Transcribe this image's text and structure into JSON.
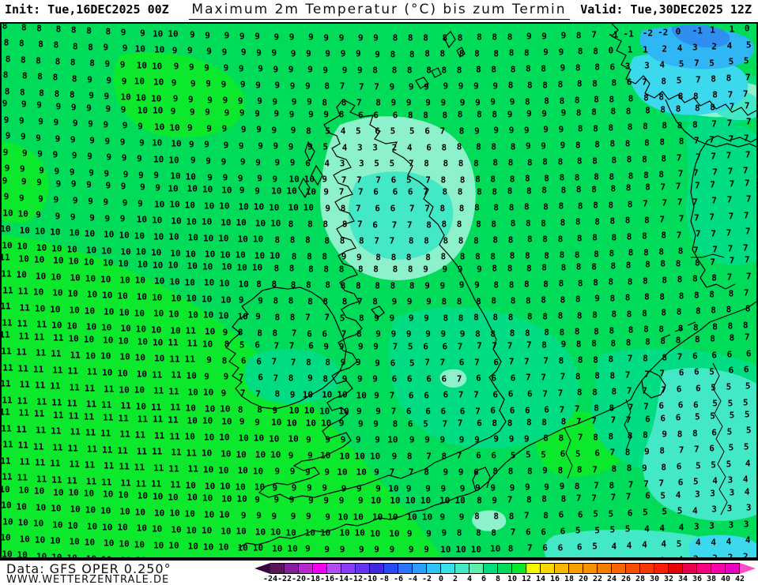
{
  "header": {
    "init_label": "Init: Tue,16DEC2025 00Z",
    "title": "Maximum 2m Temperatur (°C) bis zum Termin",
    "valid_label": "Valid: Tue,30DEC2025 12Z"
  },
  "footer": {
    "data_source": "Data: GFS OPER 0.250°",
    "website": "WWW.WETTERZENTRALE.DE"
  },
  "colorbar": {
    "labels": [
      "-24",
      "-22",
      "-20",
      "-18",
      "-16",
      "-14",
      "-12",
      "-10",
      "-8",
      "-6",
      "-4",
      "-2",
      "0",
      "2",
      "4",
      "6",
      "8",
      "10",
      "12",
      "14",
      "16",
      "18",
      "20",
      "22",
      "24",
      "26",
      "28",
      "30",
      "32",
      "34",
      "36",
      "38",
      "40",
      "42"
    ],
    "arrow_left_color": "#38083c",
    "arrow_right_color": "#ff50c8",
    "cell_colors": [
      "#581458",
      "#86209a",
      "#b428cc",
      "#f000f0",
      "#b44cf4",
      "#8c3cf8",
      "#6434f0",
      "#4028e0",
      "#2848f4",
      "#2874fc",
      "#28a0fc",
      "#30c4f8",
      "#38e0e8",
      "#44e8c4",
      "#60eeaa",
      "#00dc82",
      "#00dc5a",
      "#0ce92c",
      "#f8f800",
      "#f8d800",
      "#f8b800",
      "#f8a000",
      "#f89000",
      "#f87c00",
      "#f86400",
      "#f85000",
      "#f83800",
      "#f82000",
      "#e80000",
      "#e8004c",
      "#f80080",
      "#f800a8",
      "#e800c0"
    ]
  },
  "map": {
    "fill": {
      "base_8_10": "#00dc5a",
      "green_10_12": "#0ce92c",
      "teal_6_8": "#00dc82",
      "mint_4_6": "#8df2cc",
      "aqua_2_4": "#43e8c6",
      "cyan_0_2": "#3cd8ee",
      "lblue_m2_0": "#30b5f5",
      "blue_m4_m2": "#2e8ff0",
      "coast": "#000000"
    },
    "grid": [
      "8 8 8 8 8 8 8 9 9 10 10 9 9 9 9 9 9 9 9 9 9 9 9 8 8 8 8 8 8 8 8 9 9 9 8 7 -1 -1 -2 -2 0 -1 1 1 0",
      "8 8 8 8 8 8 9 9 10 10 9 9 9 9 9 9 9 9 9 9 9 9 9 8 8 8 8 8 8 8 8 8 9 9 8 8 0 1 1 2 4 3 2 4 5",
      "8 8 8 8 8 8 9 9 10 10 9 9 9 9 9 9 9 9 9 9 9 9 8 8 8 8 8 8 8 8 8 8 8 9 8 8 6 3 3 4 5 7 5 5 5",
      "8 8 8 8 8 9 9 9 10 10 9 9 9 9 9 9 9 9 9 8 7 7 7 9 9 9 9 9 9 9 8 8 8 8 8 8 8 6 7 8 5 7 8 8 7",
      "8 8 8 8 8 9 9 10 10 10 9 9 9 9 9 9 9 9 9 8 8 7 8 9 9 9 9 9 9 9 9 8 8 8 8 8 8 8 8 8 8 8 8 7 7",
      "9 9 9 9 9 9 9 9 10 10 9 9 9 9 9 9 9 9 9 9 8 6 6 6 8 8 8 8 8 8 9 9 9 9 8 8 8 8 8 8 8 8 8 7 7",
      "9 9 9 9 9 9 9 9 9 10 10 9 9 9 9 9 9 9 8 5 4 5 6 5 5 6 7 8 9 9 9 9 9 9 8 8 8 8 8 8 8 8 7 7 7",
      "9 9 9 9 9 9 9 9 9 10 10 9 9 9 9 9 9 9 9 5 4 3 3 2 4 6 8 8 8 8 8 9 9 9 8 8 8 8 8 8 8 7 7 7 7",
      "9 9 9 9 9 9 9 9 9 10 10 9 9 9 9 9 9 9 6 4 3 3 5 5 7 8 8 8 8 8 8 8 8 8 8 8 8 8 8 8 7 7 7 7 7",
      "9 9 9 9 9 9 9 9 9 9 10 10 9 9 9 9 9 10 10 9 7 7 7 6 5 7 8 8 8 8 8 8 8 8 8 8 8 8 8 8 7 7 7 7 7",
      "9 9 9 9 9 9 9 9 9 9 10 10 10 10 9 9 10 10 10 9 7 7 6 6 6 7 8 8 8 8 8 8 8 8 8 8 8 8 8 7 7 7 7 7 7",
      "9 9 9 9 9 9 9 9 9 10 10 10 10 10 10 10 10 10 10 9 8 7 6 6 7 7 8 8 8 8 8 8 8 8 8 8 8 8 7 7 7 7 7 7 7",
      "10 10 9 9 9 9 9 9 10 10 10 10 10 10 10 10 10 8 8 8 8 7 6 7 7 8 8 8 8 8 8 8 8 8 8 8 8 8 8 7 7 7 7 7 7",
      "10 10 10 10 10 10 10 10 10 10 10 10 10 10 10 10 8 8 8 8 8 8 7 7 8 8 8 8 8 8 8 8 8 8 8 8 8 8 8 8 7 7 7 7 7",
      "10 10 10 10 10 10 10 10 10 10 10 10 10 10 10 10 10 8 8 8 9 9 8 8 8 8 8 8 8 8 8 8 8 8 8 8 8 8 8 8 8 7 7 7 7",
      "11 10 10 10 10 10 10 10 10 10 10 10 10 10 10 10 8 8 8 8 8 8 8 8 8 9 9 9 9 8 8 8 8 8 8 8 8 8 8 8 8 8 7 7 7",
      "11 10 10 10 10 10 10 10 10 10 10 10 10 10 10 8 8 8 8 8 8 8 8 8 8 9 9 9 9 8 8 8 8 8 8 8 8 8 8 8 8 8 8 7 7",
      "11 11 10 10 10 10 10 10 10 10 10 10 10 10 9 9 8 8 8 8 8 7 8 9 9 9 8 8 8 8 8 8 8 8 8 9 8 8 8 8 8 8 8 8 7",
      "11 11 10 10 10 10 10 10 10 10 10 10 10 10 10 9 8 8 7 7 5 8 9 9 9 9 8 8 8 8 8 8 8 8 8 8 8 8 8 8 8 8 8 8 8",
      "11 11 11 10 10 10 10 10 10 10 10 11 10 9 8 8 8 7 6 6 7 8 9 9 9 9 9 9 8 8 8 8 8 8 8 8 8 8 8 8 8 8 8 8 8",
      "11 11 11 11 10 10 10 10 10 10 11 11 10 8 5 6 7 7 6 9 9 9 9 7 5 6 6 7 7 7 7 7 8 9 8 8 8 8 8 8 8 8 8 8 7",
      "11 11 11 11 11 10 10 10 10 10 11 11 9 8 6 6 7 7 8 8 9 9 9 6 5 7 7 6 7 6 7 7 7 8 8 8 8 7 8 8 7 6 6 6 6",
      "11 11 11 11 11 11 10 10 10 11 11 10 9 9 7 6 7 8 9 8 9 9 9 6 6 6 6 7 6 6 6 7 7 7 8 8 8 7 7 7 6 6 5 6 6",
      "11 11 11 11 11 11 11 10 10 11 11 10 10 9 7 7 8 9 10 10 10 10 9 7 6 6 6 7 7 6 6 6 7 7 8 8 8 7 7 7 6 6 5 5 5",
      "11 11 11 11 11 11 11 11 10 11 11 10 10 10 8 8 9 10 10 10 10 9 9 7 6 6 6 6 7 6 6 6 6 7 7 8 8 7 7 6 6 6 5 5 5",
      "11 11 11 11 11 11 11 11 11 11 11 10 10 10 9 9 10 10 10 10 9 9 9 8 6 5 7 7 6 8 8 8 8 8 7 7 7 7 6 6 6 5 5 5 5",
      "11 11 11 11 11 11 11 11 11 11 11 10 10 10 10 10 10 10 9 9 9 9 9 10 9 9 9 9 9 9 9 9 8 8 7 8 8 8 8 9 8 8 6 5 5",
      "11 11 11 11 11 11 11 11 11 11 11 11 10 10 10 10 10 9 9 10 10 10 10 9 8 7 8 7 6 6 5 5 5 6 5 6 7 8 9 8 7 7 6 5 5",
      "11 11 11 11 11 11 11 11 11 11 11 11 10 10 10 10 9 9 9 9 10 10 9 7 7 8 9 9 6 8 8 8 9 8 8 7 8 8 9 8 6 5 5 5 4",
      "11 11 11 11 11 11 11 11 11 11 11 10 10 10 10 10 9 9 9 9 9 9 9 10 9 9 9 9 9 9 9 9 9 9 8 7 8 7 7 7 6 5 4 3 4",
      "10 10 10 10 10 10 10 10 10 10 10 10 10 10 10 9 9 9 9 9 9 9 10 10 10 10 10 10 8 9 7 8 8 8 7 7 7 7 6 5 4 3 3 3 4",
      "10 10 10 10 10 10 10 10 10 10 10 10 10 10 9 9 9 9 9 9 10 10 10 10 10 10 9 9 8 8 8 7 8 6 6 5 5 6 5 5 5 4 3 3 3",
      "10 10 10 10 10 10 10 10 10 10 10 10 10 10 10 10 10 10 10 10 10 10 10 10 9 9 9 8 8 8 7 6 6 6 5 5 5 5 4 4 4 3 3 3 3",
      "10 10 10 10 10 10 10 10 10 10 10 10 10 10 10 10 10 10 9 9 9 9 9 9 9 9 10 10 10 10 8 7 6 6 6 5 4 4 4 4 5 4 4 4 4",
      "10 10 10 10 10 10 10 10 10 10 10 10 10 10 10 10 10 9 9 9 9 9 8 9 9 10 10 10 10 9 8 7 6 6 6 5 4 4 4 4 4 2 2 2 2"
    ]
  }
}
